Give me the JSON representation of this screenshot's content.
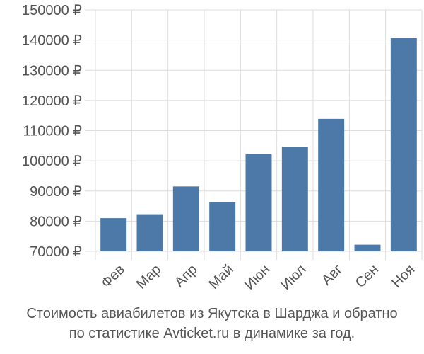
{
  "chart_data": {
    "type": "bar",
    "categories": [
      "Фев",
      "Мар",
      "Апр",
      "Май",
      "Июн",
      "Июл",
      "Авг",
      "Сен",
      "Ноя"
    ],
    "values": [
      81000,
      82300,
      91500,
      86300,
      102200,
      104600,
      113900,
      72200,
      140700
    ],
    "ylim": [
      70000,
      150000
    ],
    "yticks": [
      70000,
      80000,
      90000,
      100000,
      110000,
      120000,
      130000,
      140000,
      150000
    ],
    "ytick_labels": [
      "70000 ₽",
      "80000 ₽",
      "90000 ₽",
      "100000 ₽",
      "110000 ₽",
      "120000 ₽",
      "130000 ₽",
      "140000 ₽",
      "150000 ₽"
    ],
    "grid": true,
    "bar_color": "#4d79a8",
    "grid_color": "#dddddd"
  },
  "caption": {
    "line1": "Стоимость авиабилетов из Якутска в Шарджа и обратно",
    "line2": "по статистике Avticket.ru в динамике за год."
  }
}
